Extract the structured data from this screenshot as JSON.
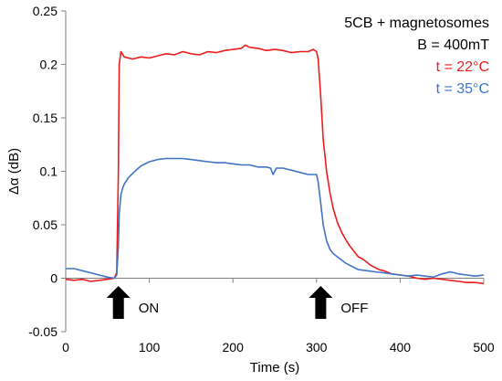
{
  "chart_data": {
    "type": "line",
    "xlabel": "Time (s)",
    "ylabel": "Δα (dB)",
    "xlim": [
      0,
      500
    ],
    "ylim": [
      -0.05,
      0.25
    ],
    "xticks": [
      "0",
      "100",
      "200",
      "300",
      "400",
      "500"
    ],
    "yticks": [
      "-0.05",
      "0",
      "0.05",
      "0.1",
      "0.15",
      "0.2",
      "0.25"
    ],
    "grid": false,
    "legend_placement": "top-right",
    "legend": {
      "line1": "5CB + magnetosomes",
      "line2": "B = 400mT",
      "series1_label": "t = 22°C",
      "series2_label": "t = 35°C"
    },
    "annotations": {
      "on_label": "ON",
      "off_label": "OFF",
      "on_x": 63,
      "off_x": 305
    },
    "series": [
      {
        "color": "#ee1c1c",
        "x": [
          0,
          10,
          20,
          30,
          40,
          50,
          58,
          61,
          63,
          64,
          66,
          70,
          80,
          90,
          100,
          110,
          120,
          130,
          140,
          150,
          160,
          170,
          180,
          190,
          200,
          210,
          215,
          220,
          230,
          240,
          250,
          260,
          270,
          280,
          290,
          296,
          300,
          302,
          305,
          308,
          312,
          316,
          320,
          325,
          330,
          335,
          340,
          345,
          350,
          355,
          360,
          365,
          370,
          375,
          380,
          390,
          400,
          410,
          420,
          430,
          440,
          450,
          460,
          470,
          480,
          490,
          500
        ],
        "y": [
          -0.001,
          -0.002,
          -0.001,
          -0.003,
          -0.002,
          -0.001,
          0.0,
          0.005,
          0.1,
          0.2,
          0.212,
          0.207,
          0.205,
          0.207,
          0.206,
          0.208,
          0.21,
          0.209,
          0.212,
          0.21,
          0.209,
          0.212,
          0.211,
          0.213,
          0.214,
          0.215,
          0.218,
          0.216,
          0.215,
          0.213,
          0.214,
          0.213,
          0.211,
          0.212,
          0.212,
          0.214,
          0.212,
          0.205,
          0.17,
          0.13,
          0.1,
          0.08,
          0.065,
          0.052,
          0.043,
          0.036,
          0.03,
          0.025,
          0.02,
          0.018,
          0.015,
          0.012,
          0.01,
          0.008,
          0.007,
          0.004,
          0.003,
          0.002,
          0.0,
          -0.001,
          0.0,
          -0.001,
          -0.002,
          -0.003,
          -0.004,
          -0.004,
          -0.005
        ]
      },
      {
        "color": "#3f74c5",
        "x": [
          0,
          10,
          20,
          30,
          40,
          50,
          58,
          61,
          63,
          64,
          66,
          68,
          70,
          75,
          80,
          90,
          100,
          110,
          120,
          130,
          140,
          150,
          160,
          170,
          180,
          190,
          200,
          210,
          220,
          230,
          240,
          245,
          248,
          252,
          255,
          260,
          270,
          280,
          290,
          296,
          300,
          302,
          305,
          308,
          312,
          316,
          320,
          325,
          330,
          335,
          340,
          345,
          350,
          360,
          370,
          380,
          390,
          400,
          410,
          420,
          430,
          440,
          450,
          460,
          470,
          480,
          490,
          500
        ],
        "y": [
          0.009,
          0.009,
          0.007,
          0.005,
          0.003,
          0.001,
          0.0,
          0.003,
          0.03,
          0.06,
          0.078,
          0.084,
          0.088,
          0.094,
          0.098,
          0.105,
          0.109,
          0.111,
          0.112,
          0.112,
          0.112,
          0.111,
          0.11,
          0.109,
          0.108,
          0.108,
          0.107,
          0.106,
          0.106,
          0.104,
          0.104,
          0.103,
          0.097,
          0.103,
          0.103,
          0.103,
          0.101,
          0.099,
          0.097,
          0.097,
          0.097,
          0.09,
          0.07,
          0.05,
          0.035,
          0.027,
          0.023,
          0.02,
          0.017,
          0.014,
          0.012,
          0.01,
          0.008,
          0.007,
          0.006,
          0.005,
          0.004,
          0.003,
          0.002,
          0.003,
          0.002,
          0.001,
          0.004,
          0.006,
          0.004,
          0.003,
          0.002,
          0.003
        ]
      }
    ]
  }
}
